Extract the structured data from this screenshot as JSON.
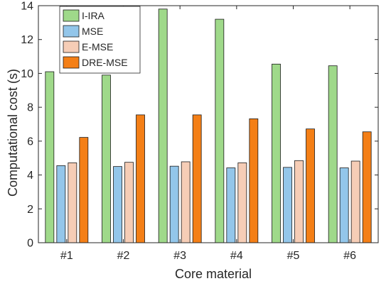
{
  "chart_data": {
    "type": "bar",
    "xlabel": "Core material",
    "ylabel": "Computational cost (s)",
    "ylim": [
      0,
      14
    ],
    "yticks": [
      0,
      2,
      4,
      6,
      8,
      10,
      12,
      14
    ],
    "categories": [
      "#1",
      "#2",
      "#3",
      "#4",
      "#5",
      "#6"
    ],
    "series": [
      {
        "name": "I-IRA",
        "color": "#9fd98a",
        "values": [
          10.1,
          9.9,
          13.8,
          13.2,
          10.55,
          10.45
        ]
      },
      {
        "name": "MSE",
        "color": "#93c6ea",
        "values": [
          4.55,
          4.5,
          4.52,
          4.42,
          4.45,
          4.42
        ]
      },
      {
        "name": "E-MSE",
        "color": "#f6cdb6",
        "values": [
          4.72,
          4.75,
          4.78,
          4.72,
          4.85,
          4.82
        ]
      },
      {
        "name": "DRE-MSE",
        "color": "#f47f16",
        "values": [
          6.22,
          7.55,
          7.55,
          7.32,
          6.72,
          6.55
        ]
      }
    ],
    "legend_position": "top-left",
    "grid": false
  }
}
